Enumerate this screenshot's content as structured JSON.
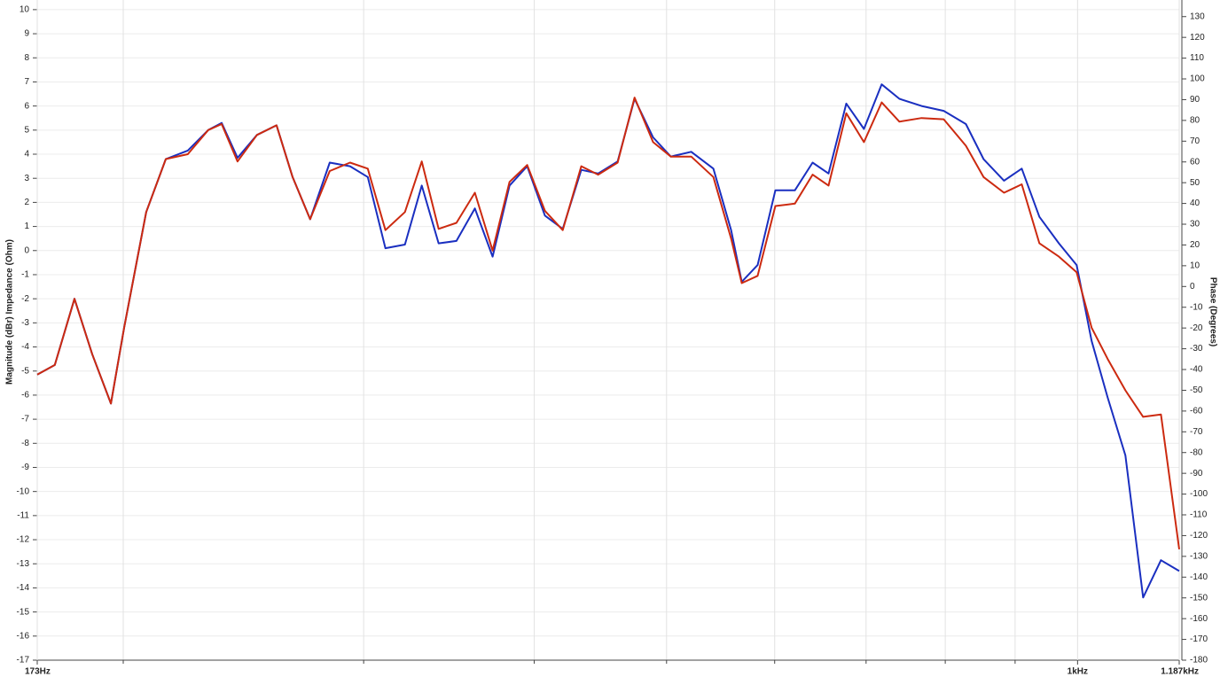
{
  "chart_data": {
    "type": "line",
    "ylabel": "Magnitude (dBr) Impedance (Ohm)",
    "y2label": "Phase (Degrees)",
    "xscale": "log",
    "grid": true,
    "xlim": [
      173,
      1187
    ],
    "xticks": [
      {
        "value": 173,
        "label": "173Hz"
      },
      {
        "value": 1000,
        "label": "1kHz"
      },
      {
        "value": 1187,
        "label": "1.187kHz"
      }
    ],
    "xgrid_minor": [
      200,
      300,
      400,
      500,
      600,
      700,
      800,
      900
    ],
    "ylim": [
      -17,
      10.4
    ],
    "yticks": [
      -17,
      -16,
      -15,
      -14,
      -13,
      -12,
      -11,
      -10,
      -9,
      -8,
      -7,
      -6,
      -5,
      -4,
      -3,
      -2,
      -1,
      0,
      1,
      2,
      3,
      4,
      5,
      6,
      7,
      8,
      9,
      10
    ],
    "y2lim": [
      -180,
      138
    ],
    "y2ticks": [
      -180,
      -170,
      -160,
      -150,
      -140,
      -130,
      -120,
      -110,
      -100,
      -90,
      -80,
      -70,
      -60,
      -50,
      -40,
      -30,
      -20,
      -10,
      0,
      10,
      20,
      30,
      40,
      50,
      60,
      70,
      80,
      90,
      100,
      110,
      120,
      130
    ],
    "x": [
      173,
      178.2,
      184.2,
      189.8,
      195.9,
      200.3,
      207.9,
      214.9,
      223.0,
      230.8,
      236.1,
      242.5,
      250.6,
      259.0,
      266.1,
      274.1,
      283.3,
      293.2,
      302.1,
      311.2,
      321.6,
      330.9,
      340.4,
      350.8,
      361.9,
      372.9,
      383.7,
      395.3,
      407.3,
      419.7,
      433.0,
      445.5,
      460.4,
      473.7,
      488.8,
      503.6,
      521.2,
      541.1,
      557.5,
      567.6,
      583.0,
      600.7,
      620.8,
      639.6,
      657.1,
      677.0,
      697.5,
      718.7,
      740.5,
      768.7,
      797.9,
      828.3,
      853.4,
      883.3,
      910.1,
      937.7,
      969.0,
      998.4,
      1024,
      1052,
      1084,
      1117,
      1151,
      1187
    ],
    "series": [
      {
        "color": "#1a2fc0",
        "values": [
          -5.15,
          -4.75,
          -2.0,
          -4.3,
          -6.35,
          -3.2,
          1.6,
          3.8,
          4.15,
          5.0,
          5.3,
          3.85,
          4.8,
          5.2,
          3.05,
          1.3,
          3.65,
          3.5,
          3.05,
          0.1,
          0.25,
          2.7,
          0.3,
          0.4,
          1.75,
          -0.25,
          2.7,
          3.5,
          1.45,
          0.9,
          3.35,
          3.2,
          3.7,
          6.3,
          4.7,
          3.9,
          4.1,
          3.4,
          0.85,
          -1.3,
          -0.6,
          2.5,
          2.5,
          3.65,
          3.2,
          6.1,
          5.05,
          6.9,
          6.3,
          6.0,
          5.8,
          5.25,
          3.8,
          2.9,
          3.4,
          1.4,
          0.3,
          -0.6,
          -3.75,
          -6.1,
          -8.5,
          -14.4,
          -12.85,
          -13.3
        ]
      },
      {
        "color": "#cc2a10",
        "values": [
          -5.15,
          -4.75,
          -2.0,
          -4.3,
          -6.35,
          -3.2,
          1.6,
          3.8,
          4.0,
          5.0,
          5.25,
          3.7,
          4.8,
          5.2,
          3.05,
          1.3,
          3.3,
          3.65,
          3.4,
          0.85,
          1.6,
          3.7,
          0.9,
          1.15,
          2.4,
          0.0,
          2.85,
          3.55,
          1.65,
          0.85,
          3.5,
          3.15,
          3.65,
          6.35,
          4.5,
          3.9,
          3.9,
          3.05,
          0.5,
          -1.35,
          -1.05,
          1.85,
          1.95,
          3.15,
          2.7,
          5.7,
          4.5,
          6.15,
          5.35,
          5.5,
          5.45,
          4.35,
          3.05,
          2.4,
          2.75,
          0.3,
          -0.25,
          -0.9,
          -3.2,
          -4.5,
          -5.8,
          -6.9,
          -6.8,
          -12.4
        ]
      }
    ]
  }
}
